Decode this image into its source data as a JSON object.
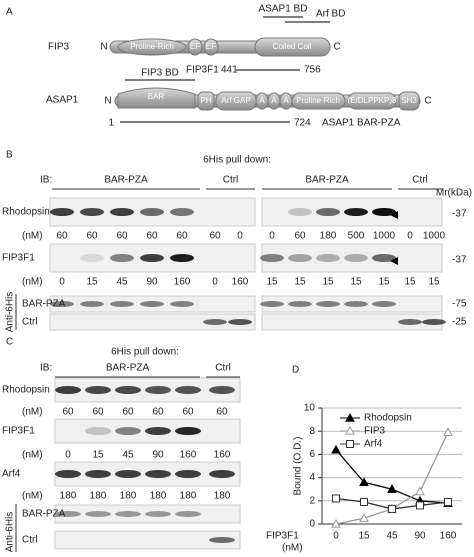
{
  "panel_a": {
    "label": "A",
    "fip3": {
      "name": "FIP3",
      "n": "N",
      "c": "C",
      "domains": [
        "Proline-Rich",
        "EF",
        "EF",
        "Coiled Coil"
      ],
      "asap1_bd": "ASAP1 BD",
      "arf_bd": "Arf BD",
      "fragment": "FIP3F1",
      "start": "441",
      "end": "756"
    },
    "asap1": {
      "name": "ASAP1",
      "n": "N",
      "c": "C",
      "fip3_bd": "FIP3 BD",
      "domains": [
        "BAR",
        "PH",
        "Arf GAP",
        "A",
        "A",
        "A",
        "Proline-Rich",
        "(E/DLPPKP)8",
        "SH3"
      ],
      "start": "1",
      "end": "724",
      "fragment": "ASAP1 BAR-PZA"
    }
  },
  "panel_b": {
    "label": "B",
    "title": "6His pull down:",
    "ib": "IB:",
    "mr": "Mr(kDa)",
    "groups": [
      "BAR-PZA",
      "Ctrl",
      "BAR-PZA",
      "Ctrl"
    ],
    "rows": [
      {
        "name": "Rhodopsin",
        "unit": "(nM)",
        "mw": "-37",
        "values": [
          60,
          60,
          60,
          60,
          60,
          60,
          0,
          0,
          60,
          180,
          500,
          1000,
          0,
          1000
        ]
      },
      {
        "name": "FIP3F1",
        "unit": "(nM)",
        "mw": "-37",
        "values": [
          0,
          15,
          45,
          90,
          160,
          0,
          160,
          15,
          15,
          15,
          15,
          15,
          15,
          15
        ]
      }
    ],
    "antibody": "Anti-6His",
    "his_rows": [
      {
        "name": "BAR-PZA",
        "mw": "-75"
      },
      {
        "name": "Ctrl",
        "mw": "-25"
      }
    ]
  },
  "panel_c": {
    "label": "C",
    "title": "6His pull down:",
    "ib": "IB:",
    "groups": [
      "BAR-PZA",
      "Ctrl"
    ],
    "rows": [
      {
        "name": "Rhodopsin",
        "unit": "(nM)",
        "values": [
          60,
          60,
          60,
          60,
          60,
          60
        ]
      },
      {
        "name": "FIP3F1",
        "unit": "(nM)",
        "values": [
          0,
          15,
          45,
          90,
          160,
          160
        ]
      },
      {
        "name": "Arf4",
        "unit": "(nM)",
        "values": [
          180,
          180,
          180,
          180,
          180,
          180
        ]
      }
    ],
    "antibody": "Anti-6His",
    "his_rows": [
      {
        "name": "BAR-PZA"
      },
      {
        "name": "Ctrl"
      }
    ]
  },
  "chart_data": {
    "type": "line",
    "label": "D",
    "y_label": "Bound (O.D.)",
    "x_label": "FIP3F1",
    "x_unit": "(nM)",
    "categories": [
      "0",
      "15",
      "45",
      "90",
      "160"
    ],
    "ylim": [
      0,
      10
    ],
    "yticks": [
      0,
      2,
      4,
      6,
      8,
      10
    ],
    "grid": true,
    "series": [
      {
        "name": "Rhodopsin",
        "color": "#000000",
        "marker": "triangle-filled",
        "values": [
          6.4,
          3.6,
          3.0,
          2.0,
          1.8
        ]
      },
      {
        "name": "FIP3",
        "color": "#999999",
        "marker": "triangle-open",
        "values": [
          0,
          0.5,
          1.3,
          2.8,
          7.9
        ]
      },
      {
        "name": "Arf4",
        "color": "#333333",
        "marker": "square-open",
        "values": [
          2.2,
          1.9,
          1.3,
          1.6,
          1.9
        ]
      }
    ]
  }
}
